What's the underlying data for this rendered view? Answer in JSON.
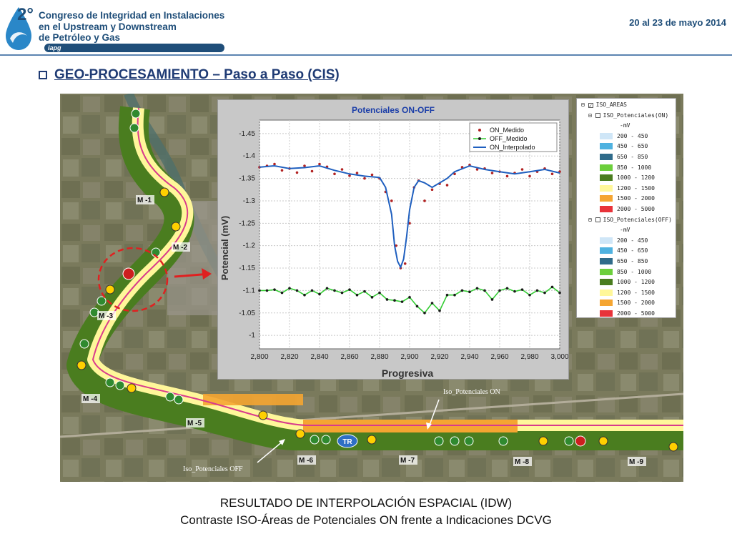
{
  "header": {
    "title_lines": [
      "Congreso de Integridad en Instalaciones",
      "en el Upstream y Downstream",
      "de Petróleo y Gas"
    ],
    "logo_text": "2°",
    "badge": "iapg",
    "date": "20 al 23 de mayo 2014"
  },
  "slide": {
    "title": "GEO-PROCESAMIENTO – Paso a Paso (CIS)"
  },
  "map": {
    "markers": [
      "M -1",
      "M -2",
      "M -3",
      "M -4",
      "M -5",
      "M -6",
      "M -7",
      "M -8",
      "M -9"
    ],
    "label_on": "Iso_Potenciales ON",
    "label_off": "Iso_Potenciales OFF",
    "tr_label": "TR"
  },
  "legend": {
    "root": "ISO_AREAS",
    "groups": [
      {
        "name": "ISO_Potenciales(ON)",
        "unit": "-mV",
        "classes": [
          {
            "label": "200 - 450",
            "color": "#cfe6f7"
          },
          {
            "label": "450 - 650",
            "color": "#4fb2e0"
          },
          {
            "label": "650 - 850",
            "color": "#2f6b8a"
          },
          {
            "label": "850 - 1000",
            "color": "#6ccf3b"
          },
          {
            "label": "1000 - 1200",
            "color": "#4a7d1f"
          },
          {
            "label": "1200 - 1500",
            "color": "#fff79a"
          },
          {
            "label": "1500 - 2000",
            "color": "#f5a531"
          },
          {
            "label": "2000 - 5000",
            "color": "#e8333a"
          }
        ]
      },
      {
        "name": "ISO_Potenciales(OFF)",
        "unit": "-mV",
        "classes": [
          {
            "label": "200 - 450",
            "color": "#cfe6f7"
          },
          {
            "label": "450 - 650",
            "color": "#4fb2e0"
          },
          {
            "label": "650 - 850",
            "color": "#2f6b8a"
          },
          {
            "label": "850 - 1000",
            "color": "#6ccf3b"
          },
          {
            "label": "1000 - 1200",
            "color": "#4a7d1f"
          },
          {
            "label": "1200 - 1500",
            "color": "#fff79a"
          },
          {
            "label": "1500 - 2000",
            "color": "#f5a531"
          },
          {
            "label": "2000 - 5000",
            "color": "#e8333a"
          }
        ]
      }
    ]
  },
  "chart_data": {
    "type": "line",
    "title": "Potenciales ON-OFF",
    "xlabel": "Progresiva",
    "ylabel": "Potencial (mV)",
    "xlim": [
      2800,
      3000
    ],
    "ylim": [
      -1.48,
      -0.97
    ],
    "y_inverted": true,
    "x_ticks": [
      "2,800",
      "2,820",
      "2,840",
      "2,860",
      "2,880",
      "2,900",
      "2,920",
      "2,940",
      "2,960",
      "2,980",
      "3,000"
    ],
    "y_ticks": [
      "-1.45",
      "-1.4",
      "-1.35",
      "-1.3",
      "-1.25",
      "-1.2",
      "-1.15",
      "-1.1",
      "-1.05",
      "-1"
    ],
    "grid": true,
    "legend_position": "top-right",
    "series": [
      {
        "name": "ON_Medido",
        "color": "#b22222",
        "style": "points",
        "x": [
          2800,
          2805,
          2810,
          2815,
          2820,
          2825,
          2830,
          2835,
          2840,
          2845,
          2850,
          2855,
          2860,
          2865,
          2870,
          2875,
          2880,
          2884,
          2888,
          2891,
          2894,
          2897,
          2900,
          2903,
          2906,
          2910,
          2915,
          2920,
          2925,
          2930,
          2935,
          2940,
          2945,
          2950,
          2955,
          2960,
          2965,
          2970,
          2975,
          2980,
          2985,
          2990,
          2995,
          3000
        ],
        "y": [
          -1.375,
          -1.378,
          -1.382,
          -1.368,
          -1.372,
          -1.363,
          -1.378,
          -1.366,
          -1.382,
          -1.376,
          -1.36,
          -1.37,
          -1.356,
          -1.362,
          -1.35,
          -1.358,
          -1.35,
          -1.32,
          -1.3,
          -1.2,
          -1.15,
          -1.16,
          -1.25,
          -1.33,
          -1.345,
          -1.3,
          -1.325,
          -1.338,
          -1.335,
          -1.36,
          -1.375,
          -1.38,
          -1.37,
          -1.372,
          -1.362,
          -1.365,
          -1.355,
          -1.362,
          -1.37,
          -1.355,
          -1.365,
          -1.372,
          -1.36,
          -1.365
        ]
      },
      {
        "name": "OFF_Medido",
        "color": "#1a1a1a",
        "style": "points-line",
        "line_color": "#33cc33",
        "x": [
          2800,
          2805,
          2810,
          2815,
          2820,
          2825,
          2830,
          2835,
          2840,
          2845,
          2850,
          2855,
          2860,
          2865,
          2870,
          2875,
          2880,
          2885,
          2890,
          2895,
          2900,
          2905,
          2910,
          2915,
          2920,
          2925,
          2930,
          2935,
          2940,
          2945,
          2950,
          2955,
          2960,
          2965,
          2970,
          2975,
          2980,
          2985,
          2990,
          2995,
          3000
        ],
        "y": [
          -1.1,
          -1.1,
          -1.102,
          -1.095,
          -1.105,
          -1.1,
          -1.09,
          -1.1,
          -1.092,
          -1.105,
          -1.1,
          -1.095,
          -1.102,
          -1.09,
          -1.098,
          -1.085,
          -1.095,
          -1.08,
          -1.078,
          -1.075,
          -1.085,
          -1.065,
          -1.05,
          -1.072,
          -1.055,
          -1.09,
          -1.09,
          -1.1,
          -1.097,
          -1.105,
          -1.1,
          -1.08,
          -1.1,
          -1.105,
          -1.098,
          -1.102,
          -1.09,
          -1.1,
          -1.095,
          -1.108,
          -1.095
        ]
      },
      {
        "name": "ON_Interpolado",
        "color": "#1f5fbf",
        "style": "line",
        "x": [
          2800,
          2810,
          2820,
          2830,
          2840,
          2850,
          2860,
          2870,
          2880,
          2884,
          2888,
          2890,
          2892,
          2894,
          2896,
          2898,
          2900,
          2903,
          2906,
          2910,
          2915,
          2920,
          2925,
          2930,
          2940,
          2950,
          2960,
          2970,
          2980,
          2990,
          3000
        ],
        "y": [
          -1.375,
          -1.378,
          -1.372,
          -1.374,
          -1.378,
          -1.368,
          -1.36,
          -1.355,
          -1.352,
          -1.33,
          -1.27,
          -1.2,
          -1.165,
          -1.152,
          -1.17,
          -1.22,
          -1.28,
          -1.33,
          -1.345,
          -1.34,
          -1.33,
          -1.34,
          -1.35,
          -1.365,
          -1.378,
          -1.37,
          -1.365,
          -1.36,
          -1.365,
          -1.37,
          -1.362
        ]
      }
    ]
  },
  "caption": {
    "line1": "RESULTADO DE INTERPOLACIÓN ESPACIAL (IDW)",
    "line2": "Contraste ISO-Áreas de Potenciales ON frente a Indicaciones DCVG"
  }
}
